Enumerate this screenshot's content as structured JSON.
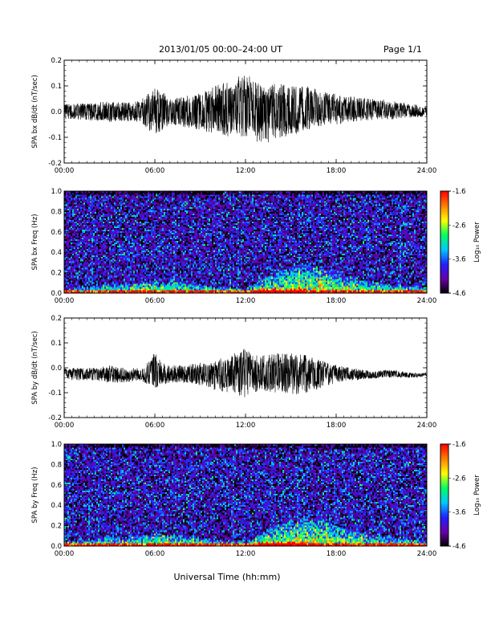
{
  "header": {
    "title": "2013/01/05  00:00–24:00 UT",
    "page": "Page 1/1"
  },
  "footer": {
    "xlabel": "Universal Time (hh:mm)"
  },
  "colorbar": {
    "label": "Log₁₀ Power",
    "ticks": [
      "-1.6",
      "-2.6",
      "-3.6",
      "-4.6"
    ],
    "range": [
      -4.6,
      -1.6
    ],
    "colors": [
      "#000000",
      "#6a00a8",
      "#2020ff",
      "#00c8ff",
      "#00ff60",
      "#ffff00",
      "#ff8000",
      "#ff0000"
    ]
  },
  "x_ticks": [
    "00:00",
    "06:00",
    "12:00",
    "18:00",
    "24:00"
  ],
  "chart_data": [
    {
      "type": "line",
      "ylabel": "SPA bx dB/dt (nT/sec)",
      "ylim": [
        -0.2,
        0.2
      ],
      "yticks": [
        "0.2",
        "0.1",
        "0.0",
        "-0.1",
        "-0.2"
      ],
      "x_range_hours": [
        0,
        24
      ],
      "envelope": {
        "x": [
          0,
          1,
          2,
          3,
          4,
          5,
          5.5,
          6,
          6.5,
          7,
          8,
          9,
          10,
          11,
          12,
          12.5,
          13,
          14,
          15,
          16,
          17,
          18,
          19,
          20,
          21,
          22,
          23,
          24
        ],
        "upper": [
          0.03,
          0.03,
          0.035,
          0.04,
          0.035,
          0.04,
          0.07,
          0.09,
          0.08,
          0.05,
          0.06,
          0.07,
          0.1,
          0.12,
          0.15,
          0.13,
          0.1,
          0.11,
          0.1,
          0.1,
          0.08,
          0.07,
          0.06,
          0.05,
          0.05,
          0.04,
          0.03,
          0.02
        ],
        "lower": [
          -0.03,
          -0.03,
          -0.035,
          -0.04,
          -0.035,
          -0.04,
          -0.07,
          -0.09,
          -0.07,
          -0.05,
          -0.06,
          -0.07,
          -0.09,
          -0.1,
          -0.1,
          -0.11,
          -0.13,
          -0.11,
          -0.09,
          -0.08,
          -0.06,
          -0.05,
          -0.04,
          -0.035,
          -0.03,
          -0.03,
          -0.025,
          -0.02
        ]
      }
    },
    {
      "type": "heatmap",
      "ylabel": "SPA bx Freq (Hz)",
      "ylim": [
        0.0,
        1.0
      ],
      "yticks": [
        "1.0",
        "0.8",
        "0.6",
        "0.4",
        "0.2",
        "0.0"
      ],
      "x_range_hours": [
        0,
        24
      ],
      "z_range": [
        -4.6,
        -1.6
      ],
      "low_freq_activity": {
        "x": [
          0,
          2,
          3,
          4,
          6,
          8,
          10,
          12,
          13,
          14,
          15,
          16,
          17,
          18,
          20,
          22,
          24
        ],
        "top_hz": [
          0.05,
          0.06,
          0.1,
          0.08,
          0.12,
          0.1,
          0.06,
          0.05,
          0.12,
          0.2,
          0.25,
          0.28,
          0.25,
          0.2,
          0.12,
          0.08,
          0.06
        ]
      }
    },
    {
      "type": "line",
      "ylabel": "SPA by dB/dt (nT/sec)",
      "ylim": [
        -0.2,
        0.2
      ],
      "yticks": [
        "0.2",
        "0.1",
        "0.0",
        "-0.1",
        "-0.2"
      ],
      "x_range_hours": [
        0,
        24
      ],
      "envelope": {
        "x": [
          0,
          1,
          2,
          3,
          4,
          5,
          5.5,
          6,
          6.5,
          7,
          8,
          9,
          10,
          11,
          12,
          12.5,
          13,
          14,
          15,
          16,
          17,
          18,
          19,
          20,
          21,
          22,
          23,
          24
        ],
        "upper": [
          0.0,
          0.0,
          0.0,
          0.01,
          0.0,
          0.0,
          0.02,
          0.06,
          0.02,
          0.01,
          0.01,
          0.02,
          0.03,
          0.05,
          0.08,
          0.05,
          0.05,
          0.06,
          0.06,
          0.05,
          0.03,
          0.01,
          0.0,
          -0.01,
          -0.01,
          -0.01,
          -0.02,
          -0.02
        ],
        "lower": [
          -0.05,
          -0.05,
          -0.05,
          -0.06,
          -0.06,
          -0.05,
          -0.07,
          -0.08,
          -0.07,
          -0.06,
          -0.06,
          -0.07,
          -0.09,
          -0.1,
          -0.12,
          -0.1,
          -0.09,
          -0.1,
          -0.11,
          -0.1,
          -0.08,
          -0.06,
          -0.05,
          -0.045,
          -0.04,
          -0.04,
          -0.04,
          -0.035
        ]
      }
    },
    {
      "type": "heatmap",
      "ylabel": "SPA by Freq (Hz)",
      "ylim": [
        0.0,
        1.0
      ],
      "yticks": [
        "1.0",
        "0.8",
        "0.6",
        "0.4",
        "0.2",
        "0.0"
      ],
      "x_range_hours": [
        0,
        24
      ],
      "z_range": [
        -4.6,
        -1.6
      ],
      "low_freq_activity": {
        "x": [
          0,
          2,
          3,
          4,
          6,
          8,
          10,
          12,
          13,
          14,
          15,
          16,
          17,
          18,
          20,
          22,
          24
        ],
        "top_hz": [
          0.05,
          0.06,
          0.1,
          0.08,
          0.12,
          0.1,
          0.06,
          0.05,
          0.12,
          0.2,
          0.25,
          0.28,
          0.25,
          0.2,
          0.12,
          0.08,
          0.06
        ]
      }
    }
  ]
}
